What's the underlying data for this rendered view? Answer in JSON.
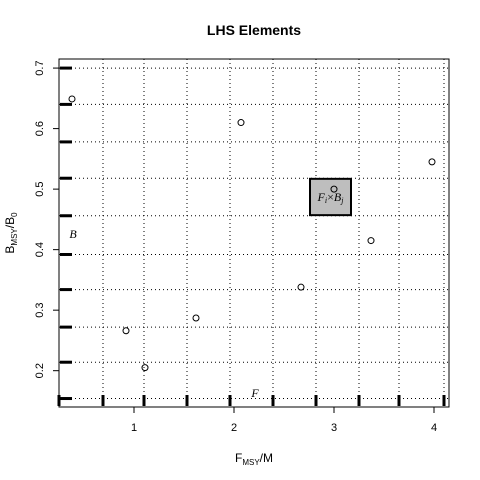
{
  "chart_data": {
    "type": "scatter",
    "title": "LHS Elements",
    "xlabel": {
      "main": "F",
      "sub": "MSY",
      "tail": "/M"
    },
    "ylabel": {
      "main": "B",
      "sub": "MSY",
      "tail": "/B",
      "tail_sub": "0"
    },
    "xlim": [
      0.25,
      4.15
    ],
    "ylim": [
      0.14,
      0.715
    ],
    "xticks": [
      1,
      2,
      3,
      4
    ],
    "xtick_labels": [
      "1",
      "2",
      "3",
      "4"
    ],
    "yticks": [
      0.2,
      0.3,
      0.4,
      0.5,
      0.6,
      0.7
    ],
    "ytick_labels": [
      "0.2",
      "0.3",
      "0.4",
      "0.5",
      "0.6",
      "0.7"
    ],
    "grid_x": [
      0.25,
      0.69,
      1.1,
      1.53,
      1.96,
      2.39,
      2.82,
      3.25,
      3.65,
      4.1
    ],
    "grid_y": [
      0.154,
      0.214,
      0.272,
      0.334,
      0.392,
      0.456,
      0.518,
      0.578,
      0.64,
      0.7
    ],
    "grid": "dotted",
    "rug_x": [
      0.25,
      0.69,
      1.1,
      1.53,
      1.96,
      2.39,
      2.82,
      3.25,
      3.65,
      4.1
    ],
    "rug_y": [
      0.154,
      0.214,
      0.272,
      0.334,
      0.392,
      0.456,
      0.518,
      0.578,
      0.64,
      0.7
    ],
    "points": [
      {
        "x": 0.38,
        "y": 0.649
      },
      {
        "x": 0.92,
        "y": 0.266
      },
      {
        "x": 1.11,
        "y": 0.205
      },
      {
        "x": 1.62,
        "y": 0.287
      },
      {
        "x": 2.07,
        "y": 0.61
      },
      {
        "x": 2.67,
        "y": 0.338
      },
      {
        "x": 3.0,
        "y": 0.5
      },
      {
        "x": 3.37,
        "y": 0.415
      },
      {
        "x": 3.98,
        "y": 0.545
      }
    ],
    "highlight_cell": {
      "x0": 2.76,
      "x1": 3.17,
      "y0": 0.457,
      "y1": 0.517,
      "fill": "#bebebe"
    },
    "annotations": {
      "cell_label": {
        "a": "F",
        "a_sub": "i",
        "op": "×",
        "b": "B",
        "b_sub": "j"
      },
      "y_margin_label": "B",
      "x_margin_label": "F"
    },
    "colors": {
      "axis": "#000000",
      "grid": "#000000",
      "cell_fill": "#bebebe"
    }
  }
}
